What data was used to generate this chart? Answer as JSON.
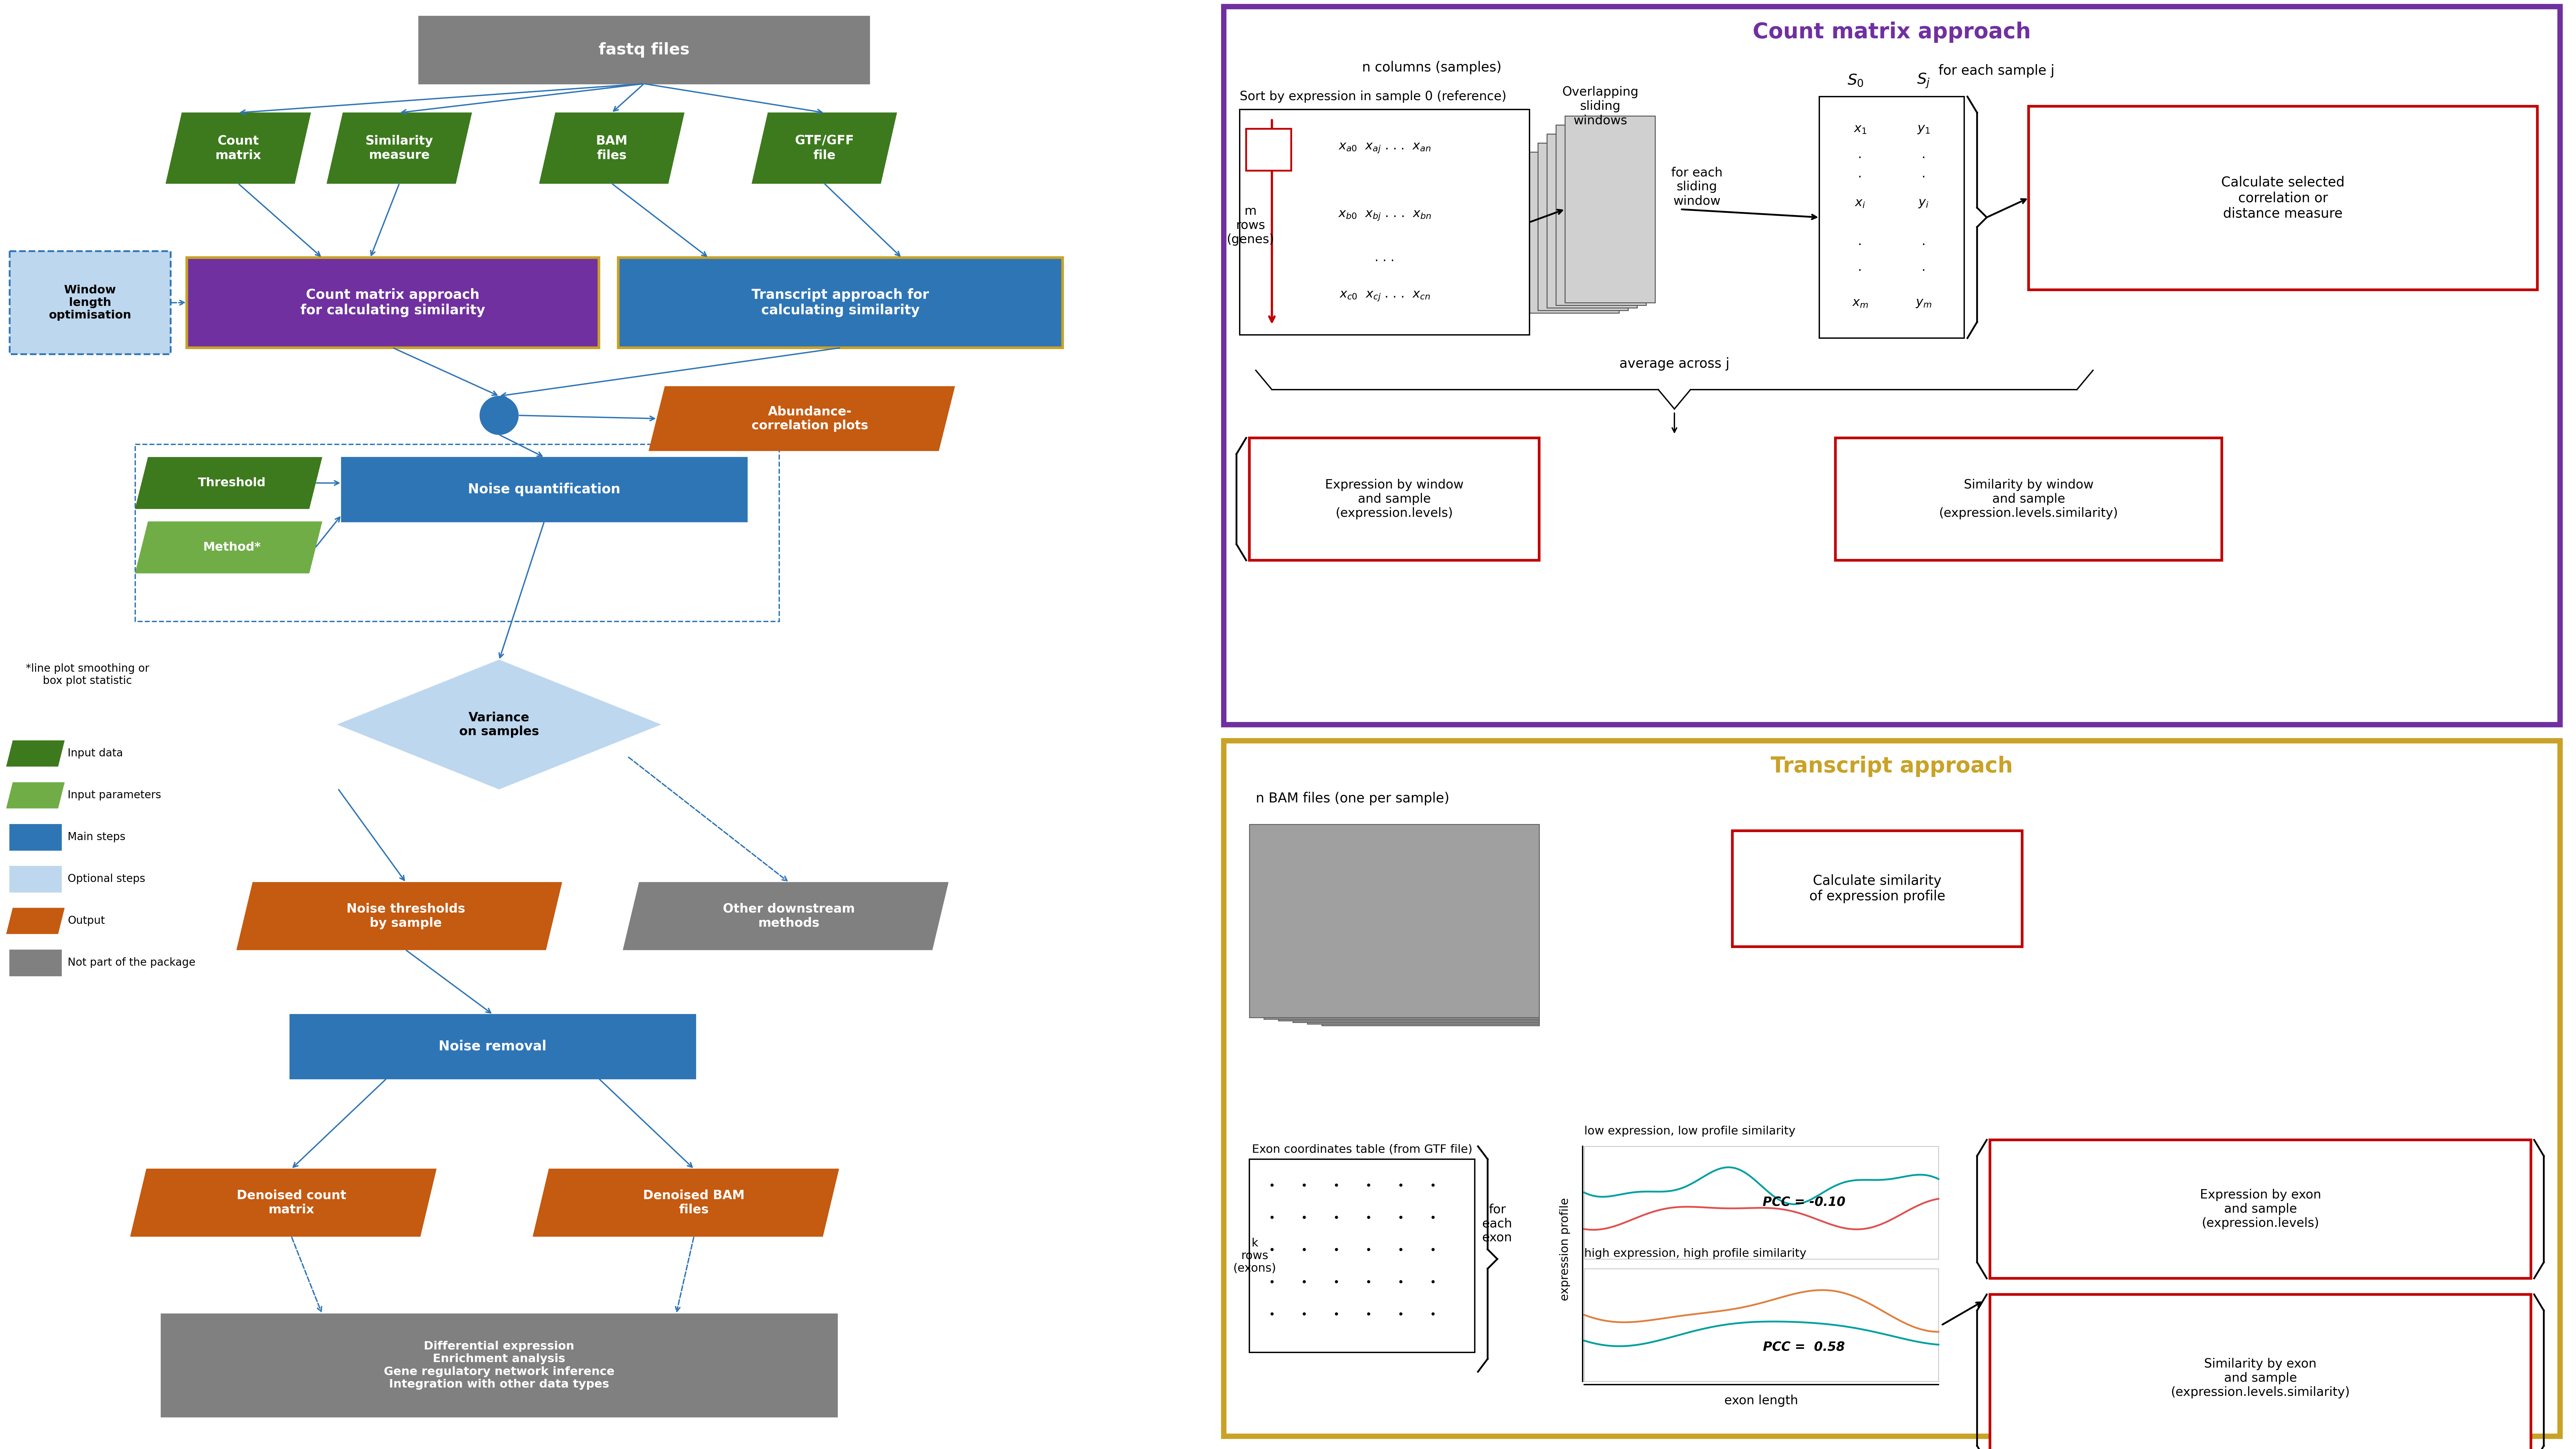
{
  "colors": {
    "gray": "#808080",
    "dark_green": "#3d7a1e",
    "light_green": "#70ad47",
    "blue": "#2e75b6",
    "light_blue": "#9dc3e6",
    "purple": "#7030a0",
    "orange": "#c55a11",
    "gold": "#c9a227",
    "red": "#c00000",
    "white": "#ffffff",
    "black": "#000000",
    "bg": "#ffffff",
    "purple_bg": "#f5eaff",
    "orange_bg": "#fff8e8",
    "light_blue_opt": "#bdd7ee"
  },
  "left": {
    "fastq": {
      "text": "fastq files",
      "color": "#808080"
    },
    "count_matrix": {
      "text": "Count\nmatrix",
      "color": "#3d7a1e"
    },
    "similarity": {
      "text": "Similarity\nmeasure",
      "color": "#3d7a1e"
    },
    "bam": {
      "text": "BAM\nfiles",
      "color": "#3d7a1e"
    },
    "gtf": {
      "text": "GTF/GFF\nfile",
      "color": "#3d7a1e"
    },
    "window": {
      "text": "Window\nlength\noptimisation",
      "color": "#bdd7ee"
    },
    "count_approach": {
      "text": "Count matrix approach\nfor calculating similarity",
      "color": "#7030a0"
    },
    "transcript_approach": {
      "text": "Transcript approach for\ncalculating similarity",
      "color": "#2e75b6"
    },
    "abundance": {
      "text": "Abundance-\ncorrelation plots",
      "color": "#c55a11"
    },
    "threshold": {
      "text": "Threshold",
      "color": "#3d7a1e"
    },
    "method": {
      "text": "Method*",
      "color": "#70ad47"
    },
    "noise_quant": {
      "text": "Noise quantification",
      "color": "#2e75b6"
    },
    "variance": {
      "text": "Variance\non samples",
      "color": "#9dc3e6"
    },
    "noise_thresh": {
      "text": "Noise thresholds\nby sample",
      "color": "#c55a11"
    },
    "other_methods": {
      "text": "Other downstream\nmethods",
      "color": "#808080"
    },
    "noise_removal": {
      "text": "Noise removal",
      "color": "#2e75b6"
    },
    "denoised_count": {
      "text": "Denoised count\nmatrix",
      "color": "#c55a11"
    },
    "denoised_bam": {
      "text": "Denoised BAM\nfiles",
      "color": "#c55a11"
    },
    "downstream": {
      "text": "Differential expression\nEnrichment analysis\nGene regulatory network inference\nIntegration with other data types",
      "color": "#808080"
    }
  },
  "legend": [
    {
      "color": "#3d7a1e",
      "shape": "para",
      "label": "Input data"
    },
    {
      "color": "#70ad47",
      "shape": "para",
      "label": "Input parameters"
    },
    {
      "color": "#2e75b6",
      "shape": "rect",
      "label": "Main steps"
    },
    {
      "color": "#bdd7ee",
      "shape": "rect",
      "label": "Optional steps"
    },
    {
      "color": "#c55a11",
      "shape": "para",
      "label": "Output"
    },
    {
      "color": "#808080",
      "shape": "rect",
      "label": "Not part of the package"
    }
  ]
}
